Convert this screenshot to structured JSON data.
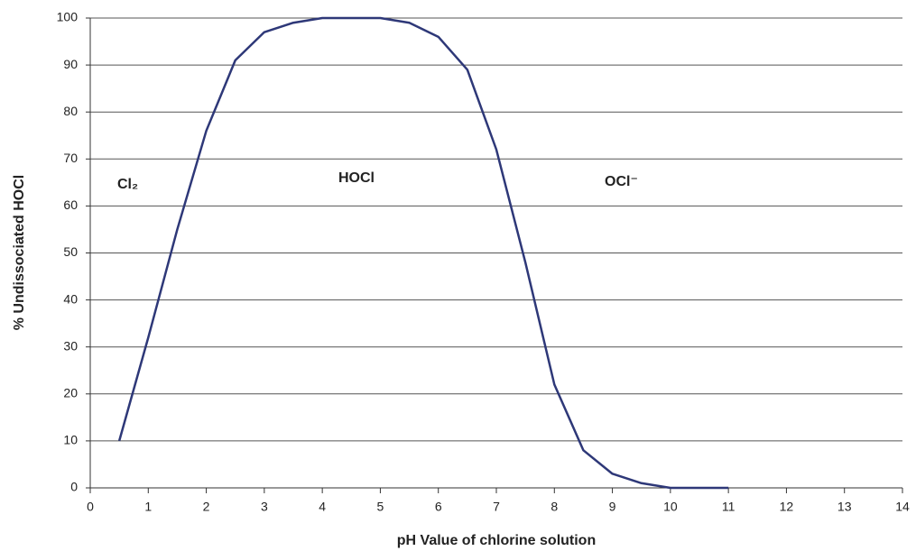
{
  "chart_data": {
    "type": "line",
    "xlabel": "pH Value of chlorine solution",
    "ylabel": "% Undissociated HOCl",
    "annotations": [
      "Cl₂",
      "HOCl",
      "OCl⁻"
    ],
    "x": [
      0.5,
      1,
      1.5,
      2,
      2.5,
      3,
      3.5,
      4,
      4.5,
      5,
      5.5,
      6,
      6.5,
      7,
      7.5,
      8,
      8.5,
      9,
      9.5,
      10,
      11
    ],
    "series": [
      {
        "color": "#2e3878",
        "values": [
          10,
          32,
          55,
          76,
          91,
          97,
          99,
          100,
          100,
          100,
          99,
          96,
          89,
          72,
          48,
          22,
          8,
          3,
          1,
          0,
          0
        ]
      }
    ],
    "xlim": [
      0,
      14
    ],
    "xticks": [
      0,
      1,
      2,
      3,
      4,
      5,
      6,
      7,
      8,
      9,
      10,
      11,
      12,
      13,
      14
    ],
    "ylim": [
      0,
      100
    ],
    "yticks": [
      0,
      10,
      20,
      30,
      40,
      50,
      60,
      70,
      80,
      90,
      100
    ],
    "grid": true
  }
}
